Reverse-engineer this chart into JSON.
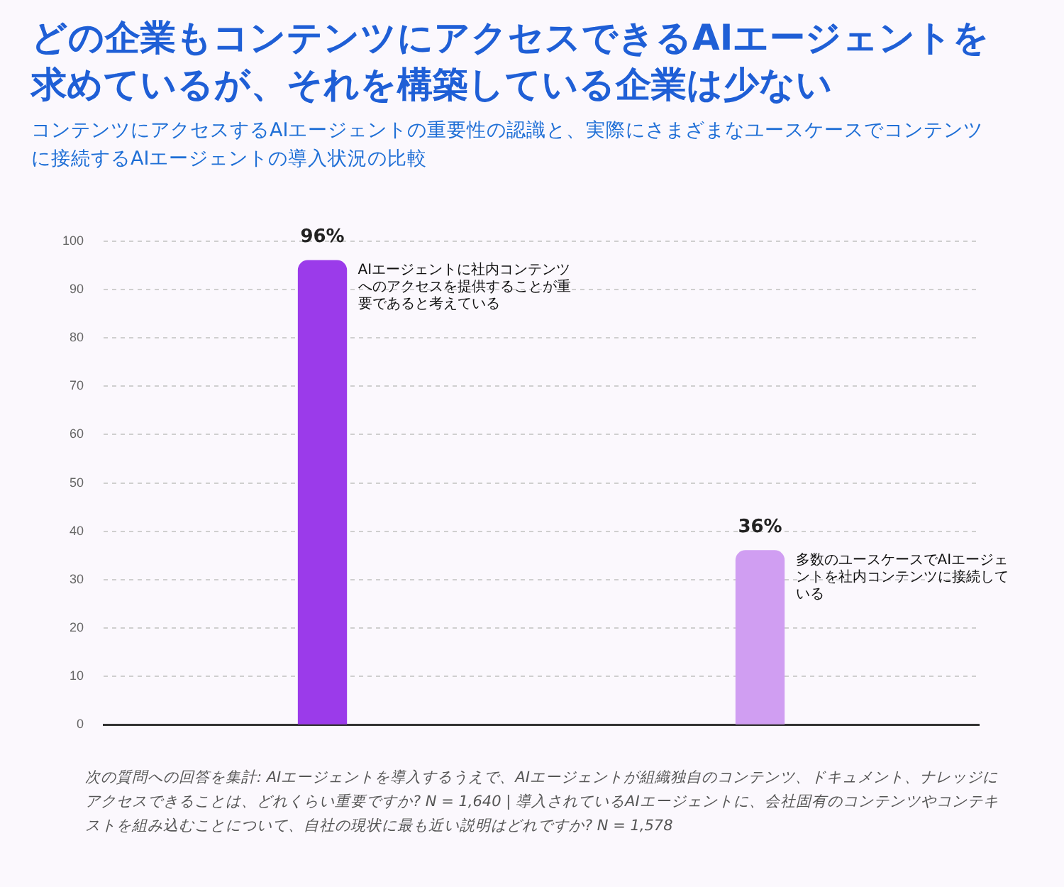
{
  "chart_data": {
    "type": "bar",
    "title": "どの企業もコンテンツにアクセスできるAIエージェントを求めているが、それを構築している企業は少ない",
    "subtitle": "コンテンツにアクセスするAIエージェントの重要性の認識と、実際にさまざまなユースケースでコンテンツに接続するAIエージェントの導入状況の比較",
    "categories": [
      "AIエージェントに社内コンテンツへのアクセスを提供することが重要であると考えている",
      "多数のユースケースでAIエージェントを社内コンテンツに接続している"
    ],
    "values": [
      96,
      36
    ],
    "value_labels": [
      "96%",
      "36%"
    ],
    "colors": [
      "#9b3bea",
      "#d09ef2"
    ],
    "ylim": [
      0,
      100
    ],
    "yticks": [
      0,
      10,
      20,
      30,
      40,
      50,
      60,
      70,
      80,
      90,
      100
    ],
    "grid": "y",
    "tick_labels": "y",
    "annotations": [
      "次の質問への回答を集計: AIエージェントを導入するうえで、AIエージェントが組織独自のコンテンツ、ドキュメント、ナレッジにアクセスできることは、どれくらい重要ですか? N = 1,640 | 導入されているAIエージェントに、会社固有のコンテンツやコンテキストを組み込むことについて、自社の現状に最も近い説明はどれですか? N = 1,578"
    ]
  }
}
